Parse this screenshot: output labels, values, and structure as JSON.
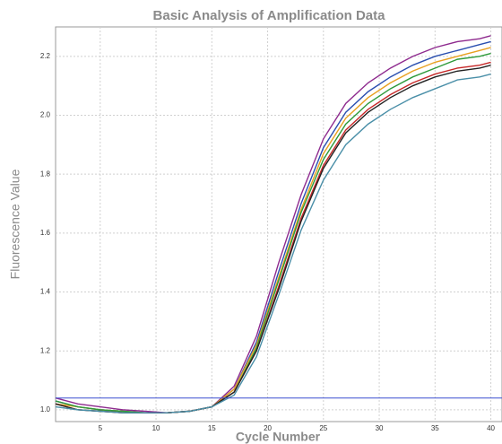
{
  "chart_data": {
    "type": "line",
    "title": "Basic Analysis of Amplification Data",
    "x_label": "Cycle Number",
    "y_label": "Fluorescence Value",
    "x": [
      1,
      3,
      5,
      7,
      9,
      11,
      13,
      15,
      17,
      19,
      21,
      23,
      25,
      27,
      29,
      31,
      33,
      35,
      37,
      39,
      40
    ],
    "series": [
      {
        "color": "#8e2a8e",
        "values": [
          1.04,
          1.02,
          1.01,
          1.0,
          0.995,
          0.99,
          0.995,
          1.01,
          1.08,
          1.25,
          1.5,
          1.73,
          1.92,
          2.04,
          2.11,
          2.16,
          2.2,
          2.23,
          2.25,
          2.26,
          2.27
        ]
      },
      {
        "color": "#2a4fb0",
        "values": [
          1.03,
          1.01,
          1.0,
          0.995,
          0.99,
          0.99,
          0.995,
          1.01,
          1.07,
          1.23,
          1.47,
          1.7,
          1.89,
          2.01,
          2.08,
          2.13,
          2.17,
          2.2,
          2.22,
          2.24,
          2.25
        ]
      },
      {
        "color": "#e8a020",
        "values": [
          1.02,
          1.01,
          1.0,
          0.995,
          0.99,
          0.99,
          0.995,
          1.01,
          1.07,
          1.22,
          1.45,
          1.68,
          1.87,
          1.99,
          2.06,
          2.11,
          2.15,
          2.18,
          2.2,
          2.22,
          2.23
        ]
      },
      {
        "color": "#2e9a3a",
        "values": [
          1.03,
          1.01,
          1.0,
          0.995,
          0.99,
          0.99,
          0.995,
          1.01,
          1.06,
          1.21,
          1.44,
          1.67,
          1.85,
          1.97,
          2.04,
          2.09,
          2.13,
          2.16,
          2.19,
          2.2,
          2.21
        ]
      },
      {
        "color": "#c62828",
        "values": [
          1.02,
          1.0,
          0.995,
          0.99,
          0.99,
          0.99,
          0.995,
          1.01,
          1.06,
          1.2,
          1.42,
          1.65,
          1.83,
          1.95,
          2.02,
          2.07,
          2.11,
          2.14,
          2.16,
          2.17,
          2.18
        ]
      },
      {
        "color": "#222222",
        "values": [
          1.02,
          1.0,
          0.995,
          0.99,
          0.99,
          0.99,
          0.995,
          1.01,
          1.06,
          1.2,
          1.41,
          1.64,
          1.82,
          1.94,
          2.01,
          2.06,
          2.1,
          2.13,
          2.15,
          2.16,
          2.17
        ]
      },
      {
        "color": "#4a8fa8",
        "values": [
          1.01,
          1.0,
          0.995,
          0.99,
          0.99,
          0.99,
          0.995,
          1.01,
          1.05,
          1.18,
          1.39,
          1.61,
          1.78,
          1.9,
          1.97,
          2.02,
          2.06,
          2.09,
          2.12,
          2.13,
          2.14
        ]
      }
    ],
    "threshold": 1.04,
    "threshold_color": "#3a4fd0",
    "xlim": [
      1,
      41
    ],
    "ylim": [
      0.96,
      2.3
    ],
    "xticks": [
      5,
      10,
      15,
      20,
      25,
      30,
      35,
      40
    ],
    "yticks": [
      {
        "value": 1,
        "label": "1.0"
      },
      1.2,
      1.4,
      1.6,
      1.8,
      {
        "value": 2,
        "label": "2.0"
      },
      2.2
    ],
    "grid": true
  }
}
